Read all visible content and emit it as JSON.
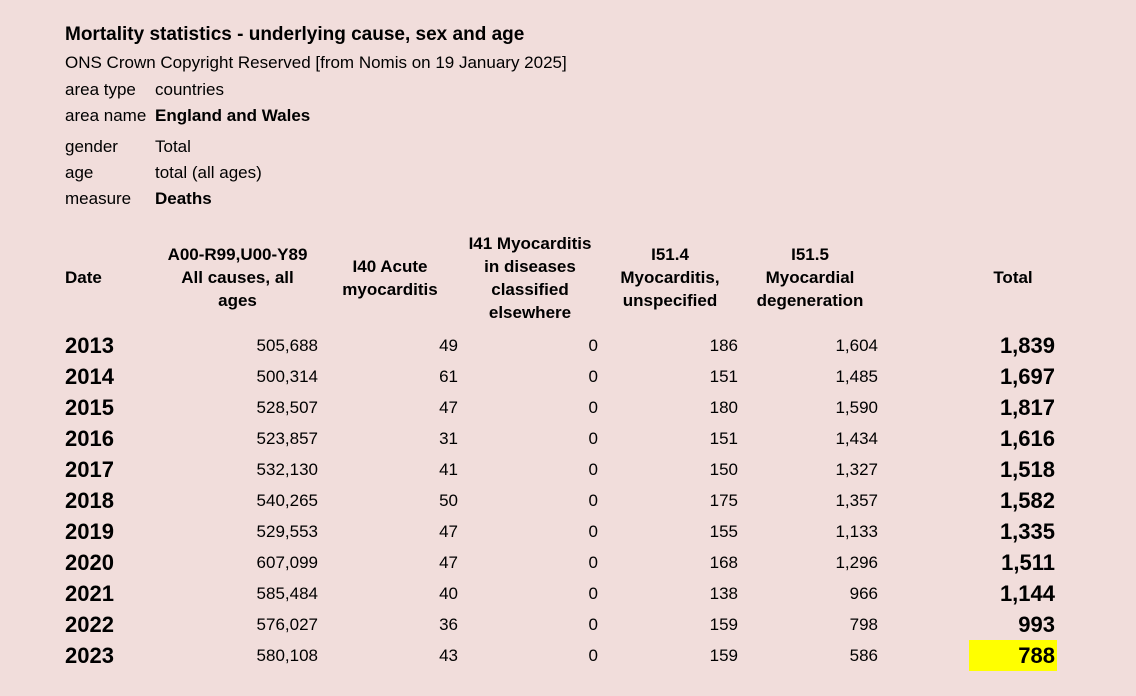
{
  "page": {
    "title": "Mortality statistics - underlying cause, sex and age",
    "copyright": "ONS Crown Copyright Reserved [from Nomis on 19 January 2025]"
  },
  "metadata": [
    {
      "label": "area type",
      "value": "countries"
    },
    {
      "label": "area name",
      "value": "England and Wales"
    },
    {
      "label": "gender",
      "value": "Total"
    },
    {
      "label": "age",
      "value": "total (all ages)"
    },
    {
      "label": "measure",
      "value": "Deaths"
    }
  ],
  "table": {
    "columns": [
      {
        "key": "date",
        "label": "Date"
      },
      {
        "key": "all_causes",
        "label": "A00-R99,U00-Y89\nAll causes, all\nages"
      },
      {
        "key": "i40",
        "label": "I40 Acute\nmyocarditis"
      },
      {
        "key": "i41",
        "label": "I41 Myocarditis\nin diseases\nclassified\nelsewhere"
      },
      {
        "key": "i51_4",
        "label": "I51.4\nMyocarditis,\nunspecified"
      },
      {
        "key": "i51_5",
        "label": "I51.5\nMyocardial\ndegeneration"
      },
      {
        "key": "total",
        "label": "Total"
      }
    ],
    "rows": [
      {
        "date": "2013",
        "values": [
          "505,688",
          "49",
          "0",
          "186",
          "1,604"
        ],
        "total": "1,839",
        "highlighted": false
      },
      {
        "date": "2014",
        "values": [
          "500,314",
          "61",
          "0",
          "151",
          "1,485"
        ],
        "total": "1,697",
        "highlighted": false
      },
      {
        "date": "2015",
        "values": [
          "528,507",
          "47",
          "0",
          "180",
          "1,590"
        ],
        "total": "1,817",
        "highlighted": false
      },
      {
        "date": "2016",
        "values": [
          "523,857",
          "31",
          "0",
          "151",
          "1,434"
        ],
        "total": "1,616",
        "highlighted": false
      },
      {
        "date": "2017",
        "values": [
          "532,130",
          "41",
          "0",
          "150",
          "1,327"
        ],
        "total": "1,518",
        "highlighted": false
      },
      {
        "date": "2018",
        "values": [
          "540,265",
          "50",
          "0",
          "175",
          "1,357"
        ],
        "total": "1,582",
        "highlighted": false
      },
      {
        "date": "2019",
        "values": [
          "529,553",
          "47",
          "0",
          "155",
          "1,133"
        ],
        "total": "1,335",
        "highlighted": false
      },
      {
        "date": "2020",
        "values": [
          "607,099",
          "47",
          "0",
          "168",
          "1,296"
        ],
        "total": "1,511",
        "highlighted": false
      },
      {
        "date": "2021",
        "values": [
          "585,484",
          "40",
          "0",
          "138",
          "966"
        ],
        "total": "1,144",
        "highlighted": false
      },
      {
        "date": "2022",
        "values": [
          "576,027",
          "36",
          "0",
          "159",
          "798"
        ],
        "total": "993",
        "highlighted": false
      },
      {
        "date": "2023",
        "values": [
          "580,108",
          "43",
          "0",
          "159",
          "586"
        ],
        "total": "788",
        "highlighted": true
      }
    ]
  },
  "colors": {
    "background": "#F1DDDB",
    "text": "#000000",
    "highlight": "#FFFF00"
  }
}
